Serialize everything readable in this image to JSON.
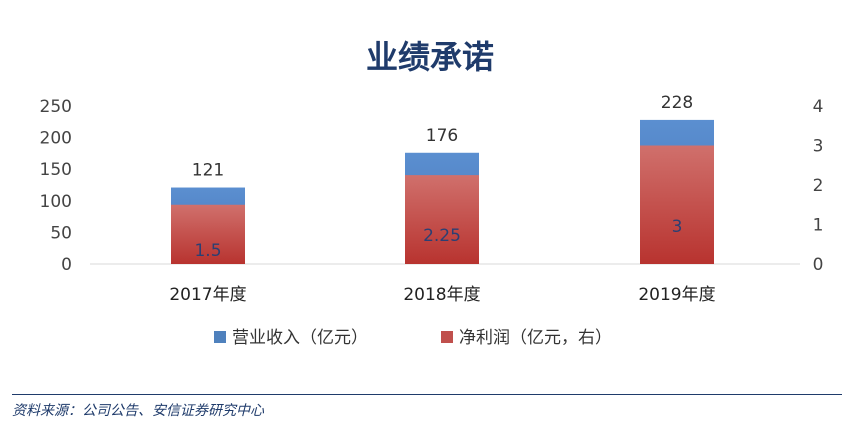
{
  "chart_data": {
    "type": "bar",
    "title": "业绩承诺",
    "categories": [
      "2017年度",
      "2018年度",
      "2019年度"
    ],
    "series": [
      {
        "name": "营业收入（亿元）",
        "axis": "left",
        "values": [
          121,
          176,
          228
        ],
        "color": "#4f81bd"
      },
      {
        "name": "净利润（亿元，右）",
        "axis": "right",
        "values": [
          1.5,
          2.25,
          3
        ],
        "color": "#c0504d"
      }
    ],
    "y_left": {
      "min": 0,
      "max": 250,
      "ticks": [
        0,
        50,
        100,
        150,
        200,
        250
      ]
    },
    "y_right": {
      "min": 0,
      "max": 4,
      "ticks": [
        0,
        1,
        2,
        3,
        4
      ]
    },
    "data_labels": {
      "left": [
        "121",
        "176",
        "228"
      ],
      "right": [
        "1.5",
        "2.25",
        "3"
      ]
    },
    "legend_position": "bottom",
    "grid": false
  },
  "source_note": "资料来源：公司公告、安信证券研究中心"
}
